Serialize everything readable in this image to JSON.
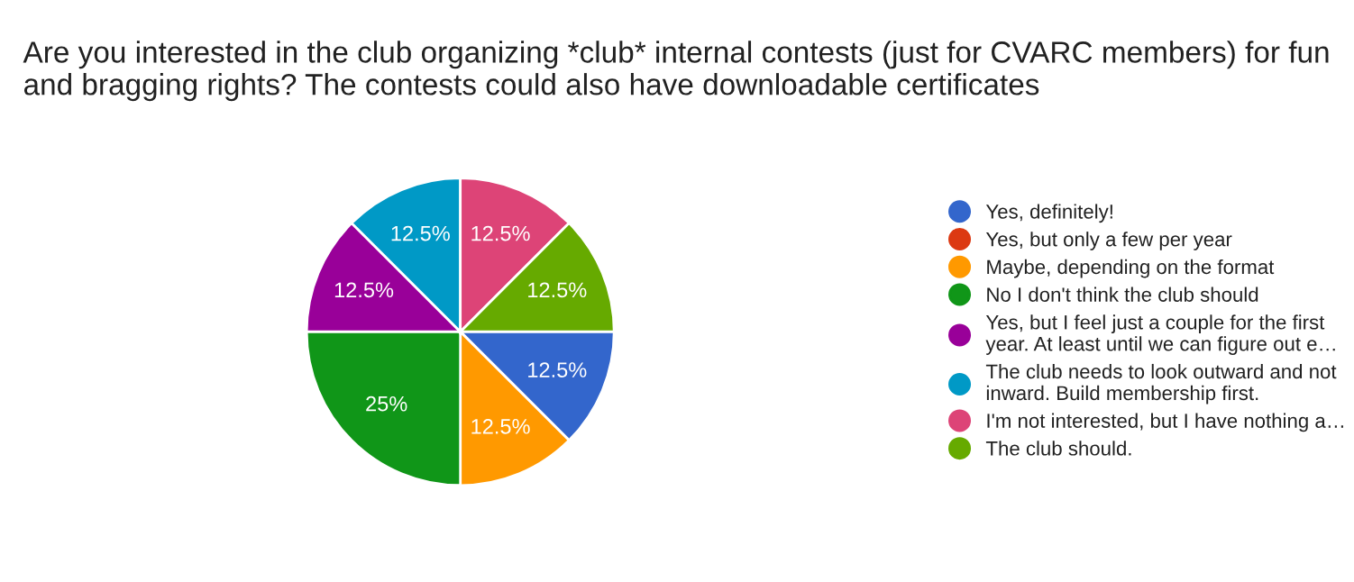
{
  "chart_data": {
    "type": "pie",
    "title": "Are you interested in the club organizing *club* internal contests (just for CVARC members) for fun and bragging rights? The contests could also have downloadable certificates",
    "categories": [
      "Yes, definitely!",
      "Yes, but only a few per year",
      "Maybe, depending on the format",
      "No I don't think the club should",
      "Yes, but I feel just a couple for the first\nyear. At least until we can figure out e…",
      "The club needs to look outward and not\ninward. Build membership first.",
      "I'm not interested, but I have nothing a…",
      "The club should."
    ],
    "values": [
      12.5,
      0,
      12.5,
      25,
      12.5,
      12.5,
      12.5,
      12.5
    ],
    "value_labels": [
      "12.5%",
      null,
      "12.5%",
      "25%",
      "12.5%",
      "12.5%",
      "12.5%",
      "12.5%"
    ],
    "colors": [
      "#3366cc",
      "#dc3912",
      "#ff9900",
      "#109618",
      "#990099",
      "#0099c6",
      "#dd4477",
      "#66aa00"
    ],
    "legend": "right"
  }
}
